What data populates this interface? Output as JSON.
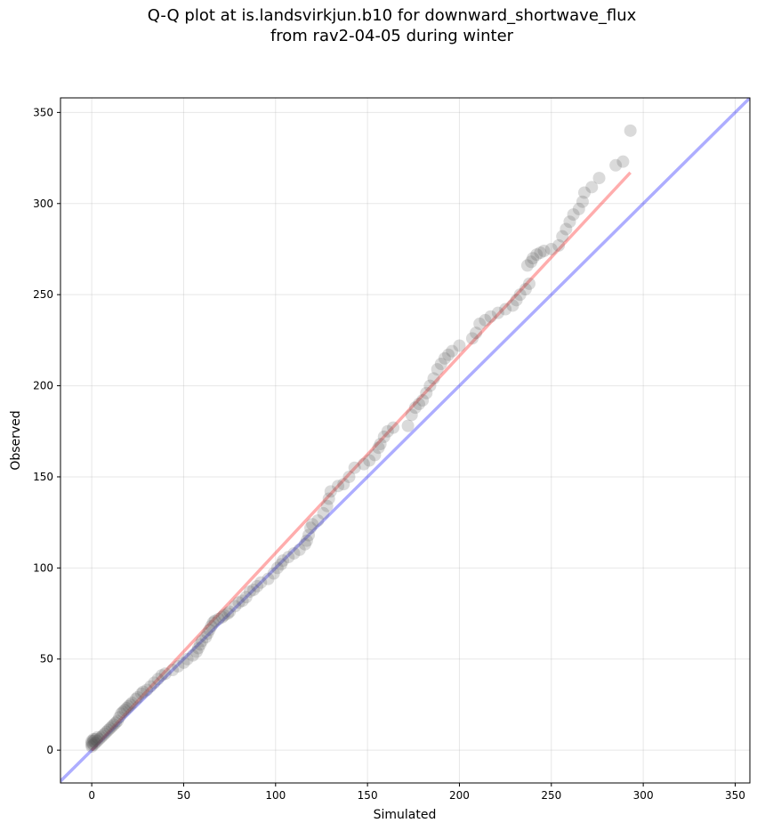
{
  "chart_data": {
    "type": "scatter",
    "title_line1": "Q-Q plot at is.landsvirkjun.b10 for downward_shortwave_flux",
    "title_line2": "from rav2-04-05 during winter",
    "xlabel": "Simulated",
    "ylabel": "Observed",
    "xlim": [
      -17,
      358
    ],
    "ylim": [
      -18,
      358
    ],
    "xticks": [
      0,
      50,
      100,
      150,
      200,
      250,
      300,
      350
    ],
    "yticks": [
      0,
      50,
      100,
      150,
      200,
      250,
      300,
      350
    ],
    "grid": true,
    "identity_line": {
      "color": "#0000ff",
      "opacity": 0.32,
      "x": [
        -17,
        358
      ],
      "y": [
        -17,
        358
      ]
    },
    "fit_line": {
      "color": "#ff0000",
      "opacity": 0.32,
      "x": [
        0,
        293
      ],
      "y": [
        0,
        317
      ]
    },
    "points_color": "#555555",
    "points": [
      [
        0,
        2
      ],
      [
        0,
        3
      ],
      [
        0,
        4
      ],
      [
        0,
        5
      ],
      [
        1,
        3
      ],
      [
        1,
        5
      ],
      [
        1,
        6
      ],
      [
        2,
        4
      ],
      [
        2,
        6
      ],
      [
        3,
        5
      ],
      [
        3,
        7
      ],
      [
        4,
        6
      ],
      [
        5,
        7
      ],
      [
        6,
        8
      ],
      [
        7,
        9
      ],
      [
        8,
        10
      ],
      [
        9,
        11
      ],
      [
        10,
        12
      ],
      [
        11,
        13
      ],
      [
        12,
        14
      ],
      [
        13,
        15
      ],
      [
        14,
        16
      ],
      [
        15,
        18
      ],
      [
        16,
        20
      ],
      [
        17,
        21
      ],
      [
        18,
        22
      ],
      [
        19,
        23
      ],
      [
        20,
        24
      ],
      [
        21,
        25
      ],
      [
        22,
        26
      ],
      [
        24,
        28
      ],
      [
        25,
        29
      ],
      [
        27,
        31
      ],
      [
        28,
        32
      ],
      [
        30,
        33
      ],
      [
        32,
        35
      ],
      [
        34,
        37
      ],
      [
        36,
        39
      ],
      [
        38,
        41
      ],
      [
        40,
        42
      ],
      [
        44,
        44
      ],
      [
        47,
        46
      ],
      [
        50,
        48
      ],
      [
        52,
        50
      ],
      [
        55,
        52
      ],
      [
        57,
        54
      ],
      [
        58,
        56
      ],
      [
        59,
        58
      ],
      [
        60,
        60
      ],
      [
        62,
        62
      ],
      [
        63,
        64
      ],
      [
        64,
        66
      ],
      [
        65,
        68
      ],
      [
        66,
        70
      ],
      [
        67,
        71
      ],
      [
        69,
        72
      ],
      [
        71,
        73
      ],
      [
        72,
        74
      ],
      [
        74,
        75
      ],
      [
        75,
        76
      ],
      [
        78,
        79
      ],
      [
        80,
        81
      ],
      [
        82,
        82
      ],
      [
        84,
        84
      ],
      [
        86,
        87
      ],
      [
        88,
        88
      ],
      [
        90,
        90
      ],
      [
        92,
        92
      ],
      [
        96,
        94
      ],
      [
        99,
        97
      ],
      [
        101,
        100
      ],
      [
        103,
        102
      ],
      [
        104,
        104
      ],
      [
        107,
        106
      ],
      [
        110,
        108
      ],
      [
        113,
        110
      ],
      [
        116,
        113
      ],
      [
        117,
        115
      ],
      [
        118,
        118
      ],
      [
        119,
        122
      ],
      [
        120,
        124
      ],
      [
        123,
        126
      ],
      [
        126,
        130
      ],
      [
        128,
        134
      ],
      [
        129,
        138
      ],
      [
        130,
        142
      ],
      [
        134,
        145
      ],
      [
        137,
        146
      ],
      [
        140,
        150
      ],
      [
        143,
        155
      ],
      [
        148,
        157
      ],
      [
        151,
        159
      ],
      [
        154,
        162
      ],
      [
        156,
        166
      ],
      [
        157,
        168
      ],
      [
        159,
        172
      ],
      [
        161,
        175
      ],
      [
        164,
        177
      ],
      [
        172,
        178
      ],
      [
        174,
        184
      ],
      [
        176,
        188
      ],
      [
        178,
        190
      ],
      [
        180,
        192
      ],
      [
        182,
        196
      ],
      [
        184,
        200
      ],
      [
        186,
        204
      ],
      [
        188,
        209
      ],
      [
        190,
        212
      ],
      [
        192,
        215
      ],
      [
        194,
        217
      ],
      [
        196,
        219
      ],
      [
        200,
        222
      ],
      [
        207,
        226
      ],
      [
        209,
        229
      ],
      [
        211,
        234
      ],
      [
        214,
        236
      ],
      [
        217,
        238
      ],
      [
        221,
        240
      ],
      [
        225,
        242
      ],
      [
        229,
        244
      ],
      [
        231,
        247
      ],
      [
        233,
        250
      ],
      [
        236,
        253
      ],
      [
        238,
        256
      ],
      [
        237,
        266
      ],
      [
        239,
        268
      ],
      [
        240,
        270
      ],
      [
        242,
        272
      ],
      [
        244,
        273
      ],
      [
        246,
        274
      ],
      [
        250,
        275
      ],
      [
        254,
        277
      ],
      [
        256,
        282
      ],
      [
        258,
        286
      ],
      [
        260,
        290
      ],
      [
        262,
        294
      ],
      [
        265,
        297
      ],
      [
        267,
        301
      ],
      [
        268,
        306
      ],
      [
        272,
        309
      ],
      [
        276,
        314
      ],
      [
        285,
        321
      ],
      [
        289,
        323
      ],
      [
        293,
        340
      ]
    ]
  }
}
